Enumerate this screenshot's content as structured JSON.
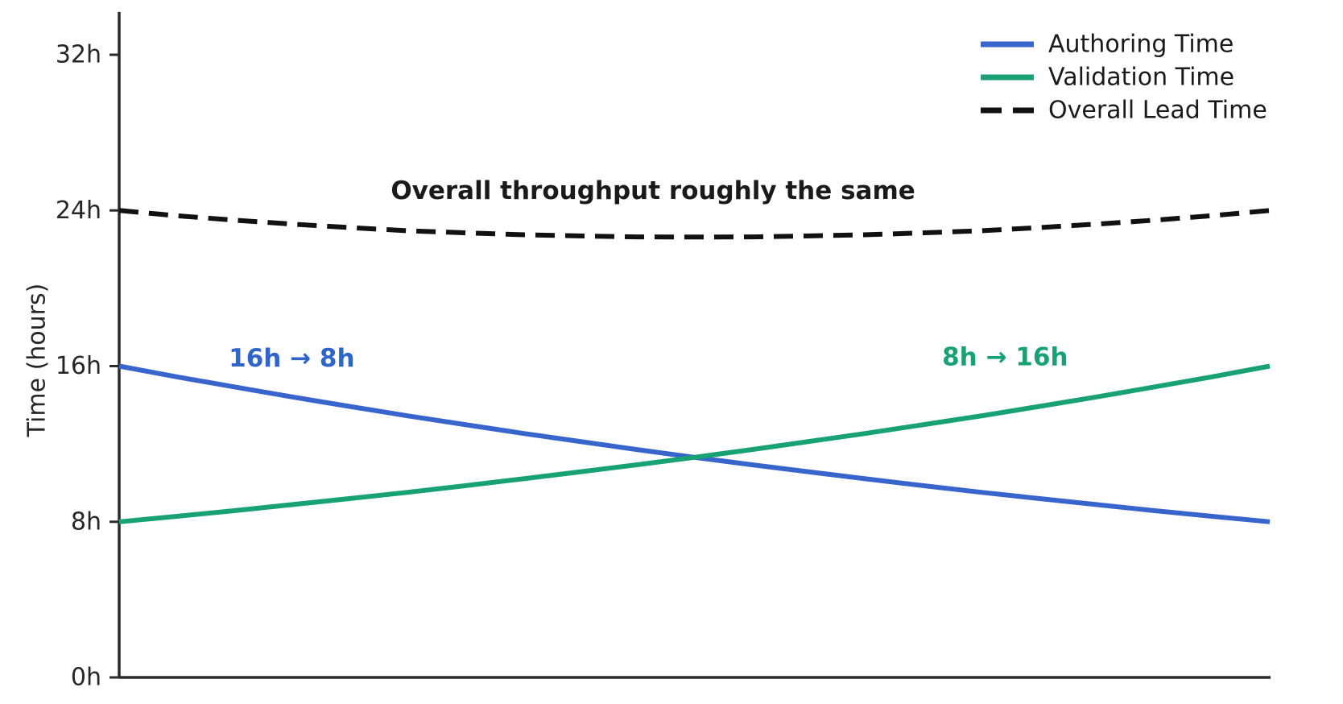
{
  "chart_data": {
    "type": "line",
    "title": "",
    "xlabel": "",
    "ylabel": "Time (hours)",
    "xlim": [
      0,
      1
    ],
    "ylim": [
      0,
      34.2
    ],
    "grid": false,
    "x_axis_ticks_visible": false,
    "legend_position": "upper right",
    "colors": {
      "authoring": "#3865cb",
      "validation": "#18a173",
      "overall": "#111111",
      "axis": "#2b2b2b",
      "tick_text": "#262626"
    },
    "x": [
      0,
      0.05,
      0.1,
      0.15,
      0.2,
      0.25,
      0.3,
      0.35,
      0.4,
      0.45,
      0.5,
      0.55,
      0.6,
      0.65,
      0.7,
      0.75,
      0.8,
      0.85,
      0.9,
      0.95,
      1
    ],
    "series": [
      {
        "name": "Authoring Time",
        "color": "#3865cb",
        "style": "solid",
        "values": [
          16,
          15.45,
          14.93,
          14.42,
          13.93,
          13.45,
          13,
          12.55,
          12.13,
          11.71,
          11.31,
          10.93,
          10.56,
          10.2,
          9.85,
          9.51,
          9.19,
          8.88,
          8.57,
          8.28,
          8
        ]
      },
      {
        "name": "Validation Time",
        "color": "#18a173",
        "style": "solid",
        "values": [
          8,
          8.28,
          8.57,
          8.88,
          9.19,
          9.51,
          9.85,
          10.2,
          10.56,
          10.93,
          11.31,
          11.71,
          12.13,
          12.55,
          13,
          13.45,
          13.93,
          14.42,
          14.93,
          15.45,
          16
        ]
      },
      {
        "name": "Overall Lead Time",
        "color": "#111111",
        "style": "dashed",
        "values": [
          24,
          23.73,
          23.5,
          23.3,
          23.12,
          22.96,
          22.85,
          22.75,
          22.69,
          22.64,
          22.63,
          22.64,
          22.69,
          22.75,
          22.85,
          22.96,
          23.12,
          23.3,
          23.5,
          23.73,
          24
        ]
      }
    ],
    "yticks": [
      {
        "value": 0,
        "label": "0h"
      },
      {
        "value": 8,
        "label": "8h"
      },
      {
        "value": 16,
        "label": "16h"
      },
      {
        "value": 24,
        "label": "24h"
      },
      {
        "value": 32,
        "label": "32h"
      }
    ],
    "annotations": [
      {
        "text": "16h → 8h",
        "color": "#2f64c9",
        "x": 0.15,
        "y": 16.4,
        "bold": true
      },
      {
        "text": "8h → 16h",
        "color": "#18a173",
        "x": 0.77,
        "y": 16.45,
        "bold": true
      },
      {
        "text": "Overall throughput roughly the same",
        "color": "#1a1a1a",
        "x": 0.464,
        "y": 25.0,
        "bold": true
      }
    ]
  }
}
